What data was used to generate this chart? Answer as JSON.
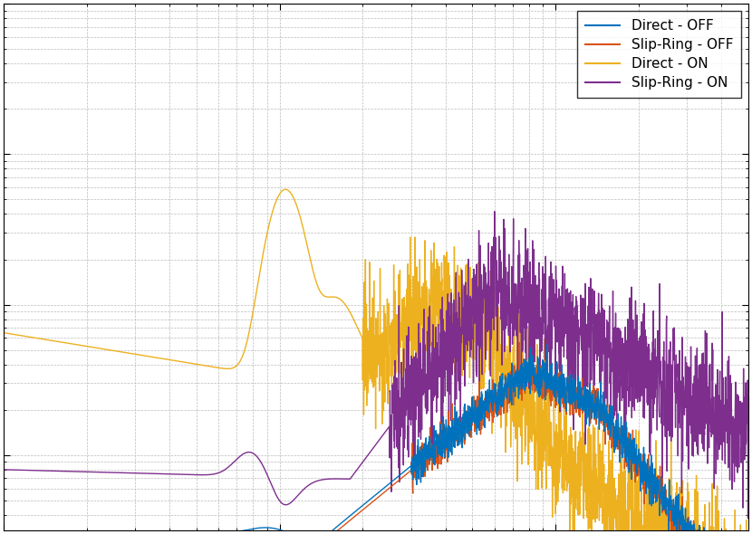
{
  "legend_labels": [
    "Direct - OFF",
    "Slip-Ring - OFF",
    "Direct - ON",
    "Slip-Ring - ON"
  ],
  "colors": [
    "#0072BD",
    "#D95319",
    "#EDB120",
    "#7E2F8E"
  ],
  "linewidths": [
    1.0,
    1.0,
    1.0,
    1.0
  ],
  "xlim": [
    1,
    500
  ],
  "ylim_log": [
    -2.5,
    1.0
  ],
  "background_color": "#FFFFFF",
  "figsize": [
    8.3,
    5.9
  ],
  "dpi": 100
}
